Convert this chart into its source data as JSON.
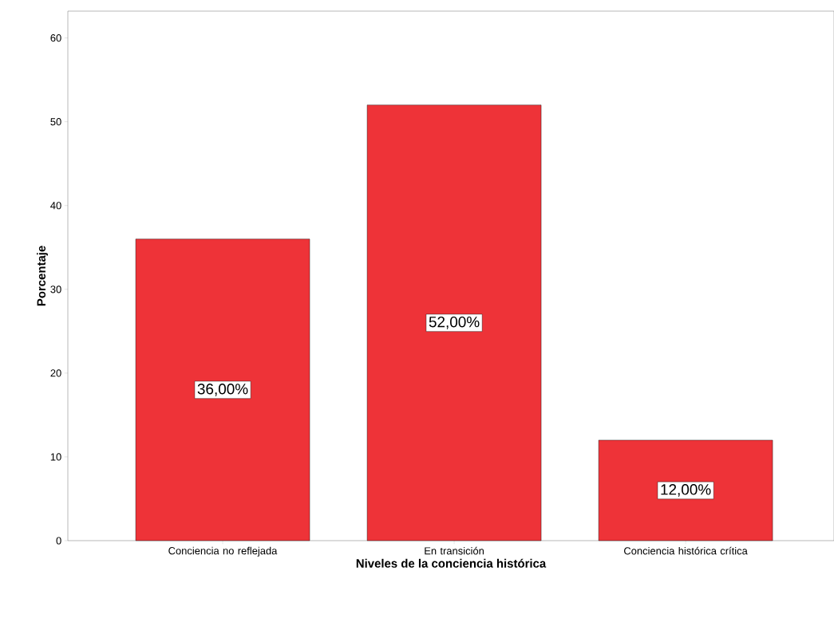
{
  "chart_data": {
    "type": "bar",
    "xlabel": "Niveles de la conciencia histórica",
    "ylabel": "Porcentaje",
    "categories": [
      "Conciencia no reflejada",
      "En transición",
      "Conciencia histórica crítica"
    ],
    "values": [
      36,
      52,
      12
    ],
    "value_labels": [
      "36,00%",
      "52,00%",
      "12,00%"
    ],
    "color": "#ee3338",
    "ylim": [
      0,
      63.2
    ],
    "yticks": [
      0,
      10,
      20,
      30,
      40,
      50,
      60
    ]
  }
}
